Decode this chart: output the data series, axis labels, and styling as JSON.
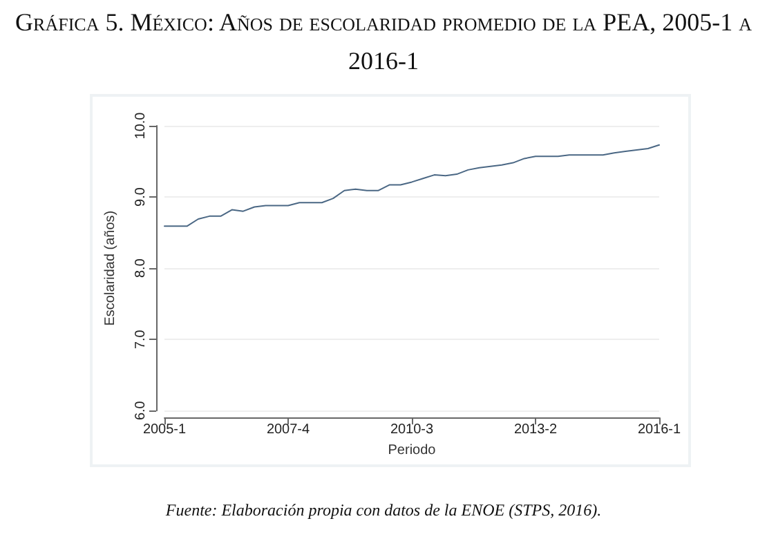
{
  "chart_data": {
    "type": "line",
    "title": "Gráfica 5. México: Años de escolaridad promedio de la PEA, 2005-1 a 2016-1",
    "xlabel": "Periodo",
    "ylabel": "Escolaridad (años)",
    "annotations": [
      "Fuente: Elaboración propia con datos de la ENOE (STPS, 2016)."
    ],
    "categories": [
      "2005-1",
      null,
      null,
      null,
      null,
      null,
      null,
      null,
      null,
      null,
      null,
      "2007-4",
      null,
      null,
      null,
      null,
      null,
      null,
      null,
      null,
      null,
      null,
      "2010-3",
      null,
      null,
      null,
      null,
      null,
      null,
      null,
      null,
      null,
      null,
      "2013-2",
      null,
      null,
      null,
      null,
      null,
      null,
      null,
      null,
      null,
      null,
      "2016-1"
    ],
    "series": [
      {
        "color": "#4a6784",
        "values": [
          8.59,
          8.59,
          8.59,
          8.69,
          8.73,
          8.73,
          8.82,
          8.8,
          8.86,
          8.88,
          8.88,
          8.88,
          8.92,
          8.92,
          8.92,
          8.98,
          9.09,
          9.11,
          9.09,
          9.09,
          9.17,
          9.17,
          9.21,
          9.26,
          9.31,
          9.3,
          9.32,
          9.38,
          9.41,
          9.43,
          9.45,
          9.48,
          9.54,
          9.57,
          9.57,
          9.57,
          9.59,
          9.59,
          9.59,
          9.59,
          9.62,
          9.64,
          9.66,
          9.68,
          9.73
        ]
      }
    ],
    "ylim": [
      6,
      10
    ],
    "yticks": [
      {
        "value": 6,
        "label": "6.0"
      },
      {
        "value": 7,
        "label": "7.0"
      },
      {
        "value": 8,
        "label": "8.0"
      },
      {
        "value": 9,
        "label": "9.0"
      },
      {
        "value": 10,
        "label": "10.0"
      }
    ],
    "grid": "y",
    "marker": "none",
    "line_style": "solid"
  }
}
